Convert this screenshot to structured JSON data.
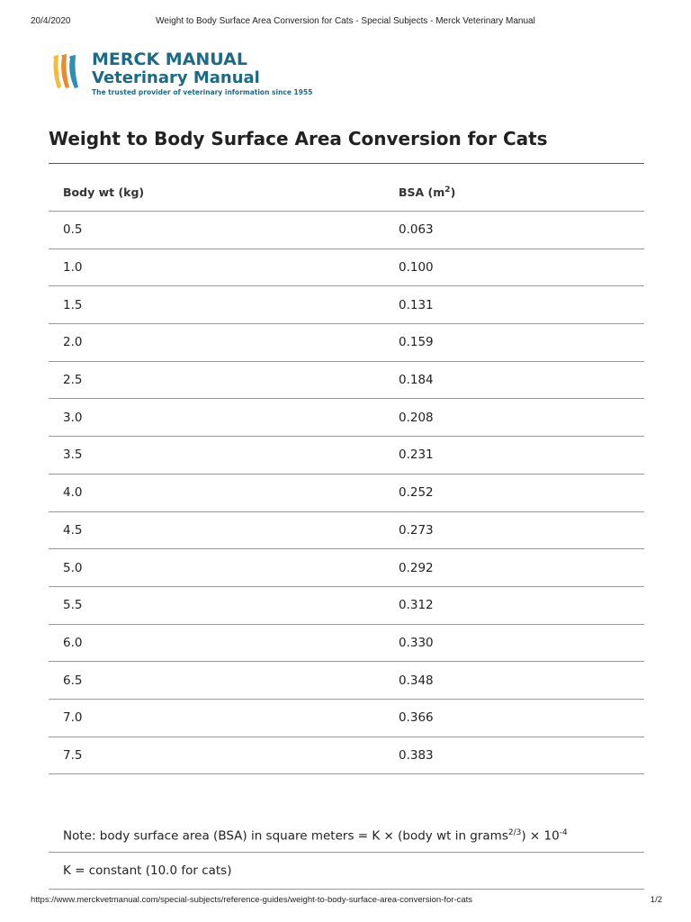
{
  "print_header": {
    "date": "20/4/2020",
    "title": "Weight to Body Surface Area Conversion for Cats - Special Subjects - Merck Veterinary Manual"
  },
  "logo": {
    "line1": "MERCK MANUAL",
    "line2": "Veterinary Manual",
    "tagline": "The trusted provider of veterinary information since 1955",
    "colors": {
      "brand": "#1d6a86",
      "stripe_light": "#f5b93f",
      "stripe_mid": "#e88a2e",
      "stripe_blue": "#2e8fb4"
    }
  },
  "page_title": "Weight to Body Surface Area Conversion for Cats",
  "table": {
    "headers": {
      "col1": "Body wt (kg)",
      "col2_prefix": "BSA (m",
      "col2_sup": "2",
      "col2_suffix": ")"
    },
    "rows": [
      [
        "0.5",
        "0.063"
      ],
      [
        "1.0",
        "0.100"
      ],
      [
        "1.5",
        "0.131"
      ],
      [
        "2.0",
        "0.159"
      ],
      [
        "2.5",
        "0.184"
      ],
      [
        "3.0",
        "0.208"
      ],
      [
        "3.5",
        "0.231"
      ],
      [
        "4.0",
        "0.252"
      ],
      [
        "4.5",
        "0.273"
      ],
      [
        "5.0",
        "0.292"
      ],
      [
        "5.5",
        "0.312"
      ],
      [
        "6.0",
        "0.330"
      ],
      [
        "6.5",
        "0.348"
      ],
      [
        "7.0",
        "0.366"
      ],
      [
        "7.5",
        "0.383"
      ]
    ]
  },
  "notes": {
    "note_prefix": "Note: body surface area (BSA) in square meters = K × (body wt in grams",
    "note_sup1": "2/3",
    "note_mid": ") × 10",
    "note_sup2": "-4",
    "constant": "K = constant (10.0 for cats)"
  },
  "print_footer": {
    "url": "https://www.merckvetmanual.com/special-subjects/reference-guides/weight-to-body-surface-area-conversion-for-cats",
    "page": "1/2"
  }
}
